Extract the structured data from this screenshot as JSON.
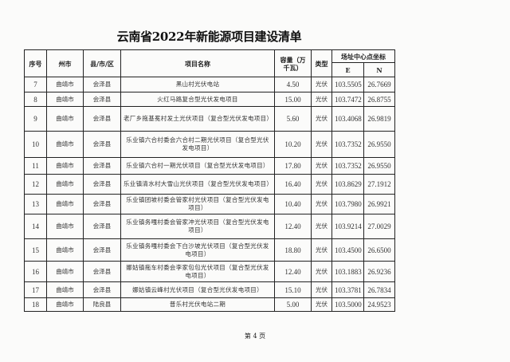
{
  "title": "云南省2022年新能源项目建设清单",
  "headers": {
    "no": "序号",
    "prefecture": "州市",
    "county": "县/市/区",
    "project_name": "项目名称",
    "capacity": "容量（万千瓦）",
    "type": "类型",
    "coords": "场址中心点坐标",
    "e": "E",
    "n": "N"
  },
  "rows": [
    {
      "no": "7",
      "prefecture": "曲靖市",
      "county": "会泽县",
      "name": "黑山村光伏电站",
      "capacity": "4.50",
      "type": "光伏",
      "e": "103.5505",
      "n": "26.7669"
    },
    {
      "no": "8",
      "prefecture": "曲靖市",
      "county": "会泽县",
      "name": "火红马路复合型光伏发电项目",
      "capacity": "15.00",
      "type": "光伏",
      "e": "103.7472",
      "n": "26.8755"
    },
    {
      "no": "9",
      "prefecture": "曲靖市",
      "county": "会泽县",
      "name": "老厂乡拖基冕村发土光伏项目（复合型光伏发电项目）",
      "capacity": "5.60",
      "type": "光伏",
      "e": "103.4068",
      "n": "26.9819"
    },
    {
      "no": "10",
      "prefecture": "曲靖市",
      "county": "会泽县",
      "name": "乐业镇六合村委会六合村二期光伏项目（复合型光伏发电项目）",
      "capacity": "10.20",
      "type": "光伏",
      "e": "103.7352",
      "n": "26.9550"
    },
    {
      "no": "11",
      "prefecture": "曲靖市",
      "county": "会泽县",
      "name": "乐业镇六合村一期光伏项目（复合型光伏发电项目）",
      "capacity": "17.80",
      "type": "光伏",
      "e": "103.7352",
      "n": "26.9550"
    },
    {
      "no": "12",
      "prefecture": "曲靖市",
      "county": "会泽县",
      "name": "乐业镇清水村大雪山光伏项目（复合型光伏发电项目）",
      "capacity": "16.40",
      "type": "光伏",
      "e": "103.8629",
      "n": "27.1912"
    },
    {
      "no": "13",
      "prefecture": "曲靖市",
      "county": "会泽县",
      "name": "乐业镇团坡村委会管家村光伏项目（复合型光伏发电项目）",
      "capacity": "10.40",
      "type": "光伏",
      "e": "103.7980",
      "n": "26.9921"
    },
    {
      "no": "14",
      "prefecture": "曲靖市",
      "county": "会泽县",
      "name": "乐业镇务嘎村委会管家冲光伏项目（复合型光伏发电项目）",
      "capacity": "12.40",
      "type": "光伏",
      "e": "103.9214",
      "n": "27.0029"
    },
    {
      "no": "15",
      "prefecture": "曲靖市",
      "county": "会泽县",
      "name": "乐业镇务嘎村委会下白沙坡光伏项目（复合型光伏发电项目）",
      "capacity": "18.80",
      "type": "光伏",
      "e": "103.4500",
      "n": "26.6500"
    },
    {
      "no": "16",
      "prefecture": "曲靖市",
      "county": "会泽县",
      "name": "娜姑镇拖车村委会李家包包光伏项目（复合型光伏发电项目）",
      "capacity": "12.40",
      "type": "光伏",
      "e": "103.1883",
      "n": "26.9236"
    },
    {
      "no": "17",
      "prefecture": "曲靖市",
      "county": "会泽县",
      "name": "娜姑镇云峰村光伏项目（复合型光伏发电项目）",
      "capacity": "15.10",
      "type": "光伏",
      "e": "103.3781",
      "n": "26.7834"
    },
    {
      "no": "18",
      "prefecture": "曲靖市",
      "county": "陆良县",
      "name": "普乐村光伏电站二期",
      "capacity": "5.00",
      "type": "光伏",
      "e": "103.5000",
      "n": "24.9523"
    }
  ],
  "footer": "第 4 页"
}
